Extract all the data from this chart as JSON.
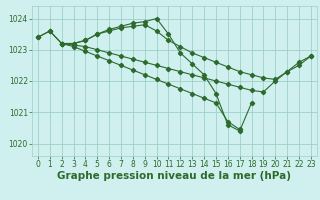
{
  "background_color": "#cff0ee",
  "line_color": "#2d6a2d",
  "grid_color": "#9ecfca",
  "xlabel": "Graphe pression niveau de la mer (hPa)",
  "xlabel_fontsize": 7.5,
  "ylim": [
    1019.6,
    1024.4
  ],
  "xlim": [
    -0.5,
    23.5
  ],
  "yticks": [
    1020,
    1021,
    1022,
    1023,
    1024
  ],
  "xticks": [
    0,
    1,
    2,
    3,
    4,
    5,
    6,
    7,
    8,
    9,
    10,
    11,
    12,
    13,
    14,
    15,
    16,
    17,
    18,
    19,
    20,
    21,
    22,
    23
  ],
  "tick_fontsize": 5.5,
  "series": [
    {
      "x": [
        0,
        1,
        2,
        3,
        4,
        5,
        6,
        7,
        8,
        9,
        10,
        11,
        12,
        13,
        14,
        15,
        16,
        17,
        18,
        19,
        20,
        21,
        22,
        23
      ],
      "y": [
        1023.4,
        1023.6,
        1023.2,
        1023.2,
        1023.3,
        1023.5,
        1023.6,
        1023.7,
        1023.75,
        1023.8,
        1023.6,
        1023.3,
        1023.1,
        1022.9,
        1022.75,
        1022.6,
        1022.45,
        1022.3,
        1022.2,
        1022.1,
        1022.05,
        1022.3,
        1022.6,
        1022.8
      ]
    },
    {
      "x": [
        0,
        1,
        2,
        3,
        4,
        5,
        6,
        7,
        8,
        9,
        10,
        11,
        12,
        13,
        14,
        15,
        16,
        17,
        18
      ],
      "y": [
        1023.4,
        1023.6,
        1023.2,
        1023.2,
        1023.3,
        1023.5,
        1023.65,
        1023.75,
        1023.85,
        1023.9,
        1024.0,
        1023.5,
        1022.9,
        1022.55,
        1022.2,
        1021.6,
        1020.6,
        1020.4,
        1021.3
      ]
    },
    {
      "x": [
        2,
        3,
        4,
        5,
        6,
        7,
        8,
        9,
        10,
        11,
        12,
        13,
        14,
        15,
        16,
        17,
        18,
        19,
        20,
        21,
        22,
        23
      ],
      "y": [
        1023.2,
        1023.15,
        1023.1,
        1023.0,
        1022.9,
        1022.8,
        1022.7,
        1022.6,
        1022.5,
        1022.4,
        1022.3,
        1022.2,
        1022.1,
        1022.0,
        1021.9,
        1021.8,
        1021.7,
        1021.65,
        1022.0,
        1022.3,
        1022.5,
        1022.8
      ]
    },
    {
      "x": [
        2,
        3,
        4,
        5,
        6,
        7,
        8,
        9,
        10,
        11,
        12,
        13,
        14,
        15,
        16,
        17
      ],
      "y": [
        1023.2,
        1023.1,
        1022.95,
        1022.8,
        1022.65,
        1022.5,
        1022.35,
        1022.2,
        1022.05,
        1021.9,
        1021.75,
        1021.6,
        1021.45,
        1021.3,
        1020.7,
        1020.45
      ]
    }
  ]
}
